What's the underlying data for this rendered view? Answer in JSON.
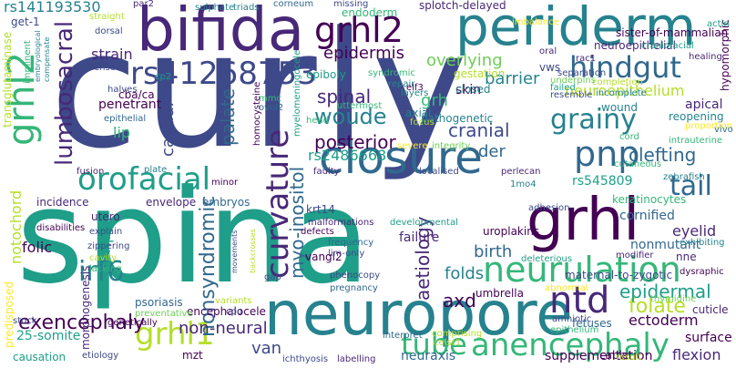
{
  "word_cloud": {
    "background": "#ffffff",
    "palette": [
      "#440154",
      "#482878",
      "#3e4989",
      "#31688e",
      "#26828e",
      "#1f9e89",
      "#35b779",
      "#6ece58",
      "#b5de2b",
      "#fde725"
    ],
    "words": [
      {
        "id": "w0",
        "text": "curly",
        "color": "#3e4989"
      },
      {
        "id": "w1",
        "text": "spina",
        "color": "#1f9e89"
      },
      {
        "id": "w2",
        "text": "neuropore",
        "color": "#26828e"
      },
      {
        "id": "w3",
        "text": "bifida",
        "color": "#482878"
      },
      {
        "id": "w4",
        "text": "periderm",
        "color": "#26828e"
      },
      {
        "id": "w5",
        "text": "grhl",
        "color": "#440154"
      },
      {
        "id": "w6",
        "text": "closure",
        "color": "#31688e"
      },
      {
        "id": "w7",
        "text": "neurulation",
        "color": "#35b779"
      },
      {
        "id": "w8",
        "text": "grhl2",
        "color": "#35b779"
      },
      {
        "id": "w9",
        "text": "ntds",
        "color": "#440154"
      },
      {
        "id": "w10",
        "text": "pnp",
        "color": "#31688e"
      },
      {
        "id": "w11",
        "text": "anencephaly",
        "color": "#35b779"
      },
      {
        "id": "w12",
        "text": "grhl1",
        "color": "#b5de2b"
      },
      {
        "id": "w13",
        "text": "rs41268753",
        "color": "#3e4989"
      },
      {
        "id": "w14",
        "text": "hindgut",
        "color": "#31688e"
      },
      {
        "id": "w15",
        "text": "ntd",
        "color": "#482878"
      },
      {
        "id": "w16",
        "text": "orofacial",
        "color": "#1f9e89"
      },
      {
        "id": "w17",
        "text": "tube",
        "color": "#35b779"
      },
      {
        "id": "w18",
        "text": "curvature",
        "color": "#482878"
      },
      {
        "id": "w19",
        "text": "grainy",
        "color": "#26828e"
      },
      {
        "id": "w20",
        "text": "irf6",
        "color": "#26828e"
      },
      {
        "id": "w21",
        "text": "woude",
        "color": "#26828e"
      },
      {
        "id": "w22",
        "text": "tail",
        "color": "#31688e"
      },
      {
        "id": "w23",
        "text": "exencephaly",
        "color": "#440154"
      },
      {
        "id": "w24",
        "text": "lumbosacral",
        "color": "#482878"
      },
      {
        "id": "w25",
        "text": "neuroepithelium",
        "color": "#b5de2b"
      },
      {
        "id": "w26",
        "text": "folate",
        "color": "#b5de2b"
      },
      {
        "id": "w27",
        "text": "nonsyndromic",
        "color": "#31688e"
      },
      {
        "id": "w28",
        "text": "myo-inositol",
        "color": "#31688e"
      },
      {
        "id": "w29",
        "text": "aetiology",
        "color": "#482878"
      },
      {
        "id": "w30",
        "text": "rs141193530",
        "color": "#26828e"
      },
      {
        "id": "w31",
        "text": "epidermal",
        "color": "#1f9e89"
      },
      {
        "id": "w32",
        "text": "clefting",
        "color": "#31688e"
      },
      {
        "id": "w33",
        "text": "non-neural",
        "color": "#482878"
      },
      {
        "id": "w34",
        "text": "palate",
        "color": "#31688e"
      },
      {
        "id": "w35",
        "text": "cranial",
        "color": "#3e4989"
      },
      {
        "id": "w36",
        "text": "posterior",
        "color": "#440154"
      },
      {
        "id": "w37",
        "text": "spinal",
        "color": "#482878"
      },
      {
        "id": "w38",
        "text": "epidermis",
        "color": "#440154"
      },
      {
        "id": "w39",
        "text": "overlying",
        "color": "#6ece58"
      },
      {
        "id": "w40",
        "text": "grh",
        "color": "#35b779"
      },
      {
        "id": "w41",
        "text": "axd",
        "color": "#440154"
      },
      {
        "id": "w42",
        "text": "barrier",
        "color": "#26828e"
      },
      {
        "id": "w43",
        "text": "notochord",
        "color": "#b5de2b"
      },
      {
        "id": "w44",
        "text": "flexion",
        "color": "#482878"
      },
      {
        "id": "w45",
        "text": "ectoderm",
        "color": "#440154"
      },
      {
        "id": "w46",
        "text": "neuraxis",
        "color": "#31688e"
      },
      {
        "id": "w47",
        "text": "van",
        "color": "#3e4989"
      },
      {
        "id": "w48",
        "text": "rs2486668",
        "color": "#1f9e89"
      },
      {
        "id": "w49",
        "text": "strain",
        "color": "#482878"
      },
      {
        "id": "w50",
        "text": "lip",
        "color": "#35b779"
      },
      {
        "id": "w51",
        "text": "caudal",
        "color": "#3e4989"
      },
      {
        "id": "w52",
        "text": "ripk4",
        "color": "#1f9e89"
      },
      {
        "id": "w53",
        "text": "cornified",
        "color": "#31688e"
      },
      {
        "id": "w54",
        "text": "eyelid",
        "color": "#482878"
      },
      {
        "id": "w55",
        "text": "folds",
        "color": "#26828e"
      },
      {
        "id": "w56",
        "text": "birth",
        "color": "#31688e"
      },
      {
        "id": "w57",
        "text": "rs545809",
        "color": "#1f9e89"
      },
      {
        "id": "w58",
        "text": "der",
        "color": "#31688e"
      },
      {
        "id": "w59",
        "text": "keratinocytes",
        "color": "#35b779"
      },
      {
        "id": "w60",
        "text": "nonmutant",
        "color": "#31688e"
      },
      {
        "id": "w61",
        "text": "supplementation",
        "color": "#440154"
      },
      {
        "id": "w62",
        "text": "psoriasis",
        "color": "#31688e"
      },
      {
        "id": "w63",
        "text": "fetuses",
        "color": "#31688e"
      },
      {
        "id": "w64",
        "text": "vangl2",
        "color": "#440154"
      },
      {
        "id": "w65",
        "text": "embryos",
        "color": "#31688e"
      },
      {
        "id": "w66",
        "text": "incidence",
        "color": "#482878"
      },
      {
        "id": "w67",
        "text": "envelope",
        "color": "#482878"
      },
      {
        "id": "w68",
        "text": "folic",
        "color": "#440154"
      },
      {
        "id": "w69",
        "text": "cuticle",
        "color": "#482878"
      },
      {
        "id": "w70",
        "text": "skin",
        "color": "#440154"
      },
      {
        "id": "w71",
        "text": "apical",
        "color": "#482878"
      },
      {
        "id": "w72",
        "text": "surface",
        "color": "#440154"
      },
      {
        "id": "w73",
        "text": "failure",
        "color": "#482878"
      },
      {
        "id": "w74",
        "text": "predisposed",
        "color": "#fde725"
      },
      {
        "id": "w75",
        "text": "penetrant",
        "color": "#440154"
      },
      {
        "id": "w76",
        "text": "epiboly",
        "color": "#1f9e89"
      },
      {
        "id": "w77",
        "text": "25-somite",
        "color": "#1f9e89"
      },
      {
        "id": "w78",
        "text": "causation",
        "color": "#1f9e89"
      },
      {
        "id": "w79",
        "text": "sister-of-mammalian",
        "color": "#440154"
      },
      {
        "id": "w80",
        "text": "neuroepithelial",
        "color": "#482878"
      },
      {
        "id": "w81",
        "text": "transglutaminase",
        "color": "#b5de2b"
      },
      {
        "id": "w82",
        "text": "hypomorphic",
        "color": "#440154"
      },
      {
        "id": "w83",
        "text": "maternal-to-zygotic",
        "color": "#3e4989"
      },
      {
        "id": "w84",
        "text": "mzt",
        "color": "#440154"
      },
      {
        "id": "w85",
        "text": "umbrella",
        "color": "#440154"
      },
      {
        "id": "w86",
        "text": "uroplakins",
        "color": "#440154"
      },
      {
        "id": "w87",
        "text": "morphogenesis",
        "color": "#482878"
      },
      {
        "id": "w88",
        "text": "utero",
        "color": "#482878"
      },
      {
        "id": "w89",
        "text": "cba/ca",
        "color": "#440154"
      },
      {
        "id": "w90",
        "text": "axial",
        "color": "#26828e"
      },
      {
        "id": "w91",
        "text": "splotch-delayed",
        "color": "#482878"
      },
      {
        "id": "w92",
        "text": "endoderm",
        "color": "#35b779"
      },
      {
        "id": "w93",
        "text": "gestation",
        "color": "#b5de2b"
      },
      {
        "id": "w94",
        "text": "closed",
        "color": "#26828e"
      },
      {
        "id": "w95",
        "text": "pathogenetic",
        "color": "#26828e"
      },
      {
        "id": "w96",
        "text": "myelomeningocele",
        "color": "#1f9e89"
      },
      {
        "id": "w97",
        "text": "homocysteine",
        "color": "#440154"
      },
      {
        "id": "w98",
        "text": "encephalocele",
        "color": "#440154"
      },
      {
        "id": "w99",
        "text": "krt14",
        "color": "#3e4989"
      },
      {
        "id": "w100",
        "text": "malformations",
        "color": "#482878"
      },
      {
        "id": "w101",
        "text": "developmental",
        "color": "#1f9e89"
      },
      {
        "id": "w102",
        "text": "syndromic",
        "color": "#35b779"
      },
      {
        "id": "w103",
        "text": "imminent",
        "color": "#35b779"
      },
      {
        "id": "w104",
        "text": "get-1",
        "color": "#3e4989"
      },
      {
        "id": "w105",
        "text": "vws",
        "color": "#3e4989"
      },
      {
        "id": "w106",
        "text": "wound",
        "color": "#26828e"
      },
      {
        "id": "w107",
        "text": "reopening",
        "color": "#26828e"
      },
      {
        "id": "w108",
        "text": "incomplete",
        "color": "#26828e"
      },
      {
        "id": "w109",
        "text": "explain",
        "color": "#3e4989"
      },
      {
        "id": "w110",
        "text": "zippering",
        "color": "#3e4989"
      },
      {
        "id": "w111",
        "text": "cavity",
        "color": "#b5de2b"
      },
      {
        "id": "w112",
        "text": "lacking",
        "color": "#35b779"
      },
      {
        "id": "w113",
        "text": "genetically",
        "color": "#440154"
      },
      {
        "id": "w114",
        "text": "preventative",
        "color": "#6ece58"
      },
      {
        "id": "w115",
        "text": "variants",
        "color": "#b5de2b"
      },
      {
        "id": "w116",
        "text": "cpo",
        "color": "#3e4989"
      },
      {
        "id": "w117",
        "text": "etiology",
        "color": "#3e4989"
      },
      {
        "id": "w118",
        "text": "ichthyosis",
        "color": "#3e4989"
      },
      {
        "id": "w119",
        "text": "labelling",
        "color": "#482878"
      },
      {
        "id": "w120",
        "text": "comprising",
        "color": "#b5de2b"
      },
      {
        "id": "w121",
        "text": "interpret",
        "color": "#31688e"
      },
      {
        "id": "w122",
        "text": "celsr1",
        "color": "#b5de2b"
      },
      {
        "id": "w123",
        "text": "cable",
        "color": "#440154"
      },
      {
        "id": "w124",
        "text": "amniotic",
        "color": "#3e4989"
      },
      {
        "id": "w125",
        "text": "epithelium",
        "color": "#35b779"
      },
      {
        "id": "w126",
        "text": "thymidine",
        "color": "#6ece58"
      },
      {
        "id": "w127",
        "text": "stock",
        "color": "#3e4989"
      },
      {
        "id": "w128",
        "text": "disabilities",
        "color": "#440154"
      },
      {
        "id": "w129",
        "text": "frequency",
        "color": "#31688e"
      },
      {
        "id": "w130",
        "text": "lim-only",
        "color": "#3e4989"
      },
      {
        "id": "w131",
        "text": "phenocopy",
        "color": "#3e4989"
      },
      {
        "id": "w132",
        "text": "pregnancy",
        "color": "#31688e"
      },
      {
        "id": "w133",
        "text": "abnormal",
        "color": "#fde725"
      },
      {
        "id": "w134",
        "text": "deleterious",
        "color": "#1f9e89"
      },
      {
        "id": "w135",
        "text": "adhesion",
        "color": "#3e4989"
      },
      {
        "id": "w136",
        "text": "modifier",
        "color": "#482878"
      },
      {
        "id": "w137",
        "text": "exhibiting",
        "color": "#26828e"
      },
      {
        "id": "w138",
        "text": "nne",
        "color": "#482878"
      },
      {
        "id": "w139",
        "text": "zebrafish",
        "color": "#26828e"
      },
      {
        "id": "w140",
        "text": "1mo4",
        "color": "#26828e"
      },
      {
        "id": "w141",
        "text": "perlecan",
        "color": "#482878"
      },
      {
        "id": "w142",
        "text": "localised",
        "color": "#3e4989"
      },
      {
        "id": "w143",
        "text": "faulty",
        "color": "#482878"
      },
      {
        "id": "w144",
        "text": "minor",
        "color": "#440154"
      },
      {
        "id": "w145",
        "text": "plate",
        "color": "#26828e"
      },
      {
        "id": "w146",
        "text": "fusion",
        "color": "#482878"
      },
      {
        "id": "w147",
        "text": "cutaneous",
        "color": "#35b779"
      },
      {
        "id": "w148",
        "text": "cord",
        "color": "#35b779"
      },
      {
        "id": "w149",
        "text": "intrauterine",
        "color": "#35b779"
      },
      {
        "id": "w150",
        "text": "proportion",
        "color": "#fde725"
      },
      {
        "id": "w151",
        "text": "resemble",
        "color": "#3e4989"
      },
      {
        "id": "w152",
        "text": "failed",
        "color": "#1f9e89"
      },
      {
        "id": "w153",
        "text": "separation",
        "color": "#3e4989"
      },
      {
        "id": "w154",
        "text": "completion",
        "color": "#b5de2b"
      },
      {
        "id": "w155",
        "text": "underpins",
        "color": "#6ece58"
      },
      {
        "id": "w156",
        "text": "repair",
        "color": "#26828e"
      },
      {
        "id": "w157",
        "text": "layers",
        "color": "#26828e"
      },
      {
        "id": "w158",
        "text": "elf3",
        "color": "#440154"
      },
      {
        "id": "w159",
        "text": "rac1",
        "color": "#482878"
      },
      {
        "id": "w160",
        "text": "oral",
        "color": "#482878"
      },
      {
        "id": "w161",
        "text": "healing",
        "color": "#482878"
      },
      {
        "id": "w162",
        "text": "craniofacial",
        "color": "#1f9e89"
      },
      {
        "id": "w163",
        "text": "actin",
        "color": "#1f9e89"
      },
      {
        "id": "w164",
        "text": "imbalance",
        "color": "#fde725"
      },
      {
        "id": "w165",
        "text": "corneum",
        "color": "#31688e"
      },
      {
        "id": "w166",
        "text": "missing",
        "color": "#3e4989"
      },
      {
        "id": "w167",
        "text": "triads",
        "color": "#26828e"
      },
      {
        "id": "w168",
        "text": "par2",
        "color": "#482878"
      },
      {
        "id": "w169",
        "text": "straight",
        "color": "#b5de2b"
      },
      {
        "id": "w170",
        "text": "dorsal",
        "color": "#3e4989"
      },
      {
        "id": "w171",
        "text": "missense",
        "color": "#3e4989"
      },
      {
        "id": "w172",
        "text": "cp2",
        "color": "#1f9e89"
      },
      {
        "id": "w173",
        "text": "halves",
        "color": "#3e4989"
      },
      {
        "id": "w174",
        "text": "epithelial",
        "color": "#31688e"
      },
      {
        "id": "w175",
        "text": "embryological",
        "color": "#26828e"
      },
      {
        "id": "w176",
        "text": "compensate",
        "color": "#26828e"
      },
      {
        "id": "w177",
        "text": "mmc",
        "color": "#35b779"
      },
      {
        "id": "w178",
        "text": "ovol2",
        "color": "#31688e"
      },
      {
        "id": "w179",
        "text": "uttermost",
        "color": "#35b779"
      },
      {
        "id": "w180",
        "text": "head",
        "color": "#35b779"
      },
      {
        "id": "w181",
        "text": "focus",
        "color": "#b5de2b"
      },
      {
        "id": "w182",
        "text": "severe",
        "color": "#fde725"
      },
      {
        "id": "w183",
        "text": "integrity",
        "color": "#6ece58"
      },
      {
        "id": "w184",
        "text": "defects",
        "color": "#440154"
      },
      {
        "id": "w185",
        "text": "gap",
        "color": "#3e4989"
      },
      {
        "id": "w186",
        "text": "sulphate",
        "color": "#26828e"
      },
      {
        "id": "w187",
        "text": "movements",
        "color": "#3e4989"
      },
      {
        "id": "w188",
        "text": "backcrosses",
        "color": "#b5de2b"
      },
      {
        "id": "w189",
        "text": "result",
        "color": "#b5de2b"
      },
      {
        "id": "w190",
        "text": "dysraphic",
        "color": "#440154"
      },
      {
        "id": "w191",
        "text": "vivo",
        "color": "#31688e"
      }
    ]
  }
}
